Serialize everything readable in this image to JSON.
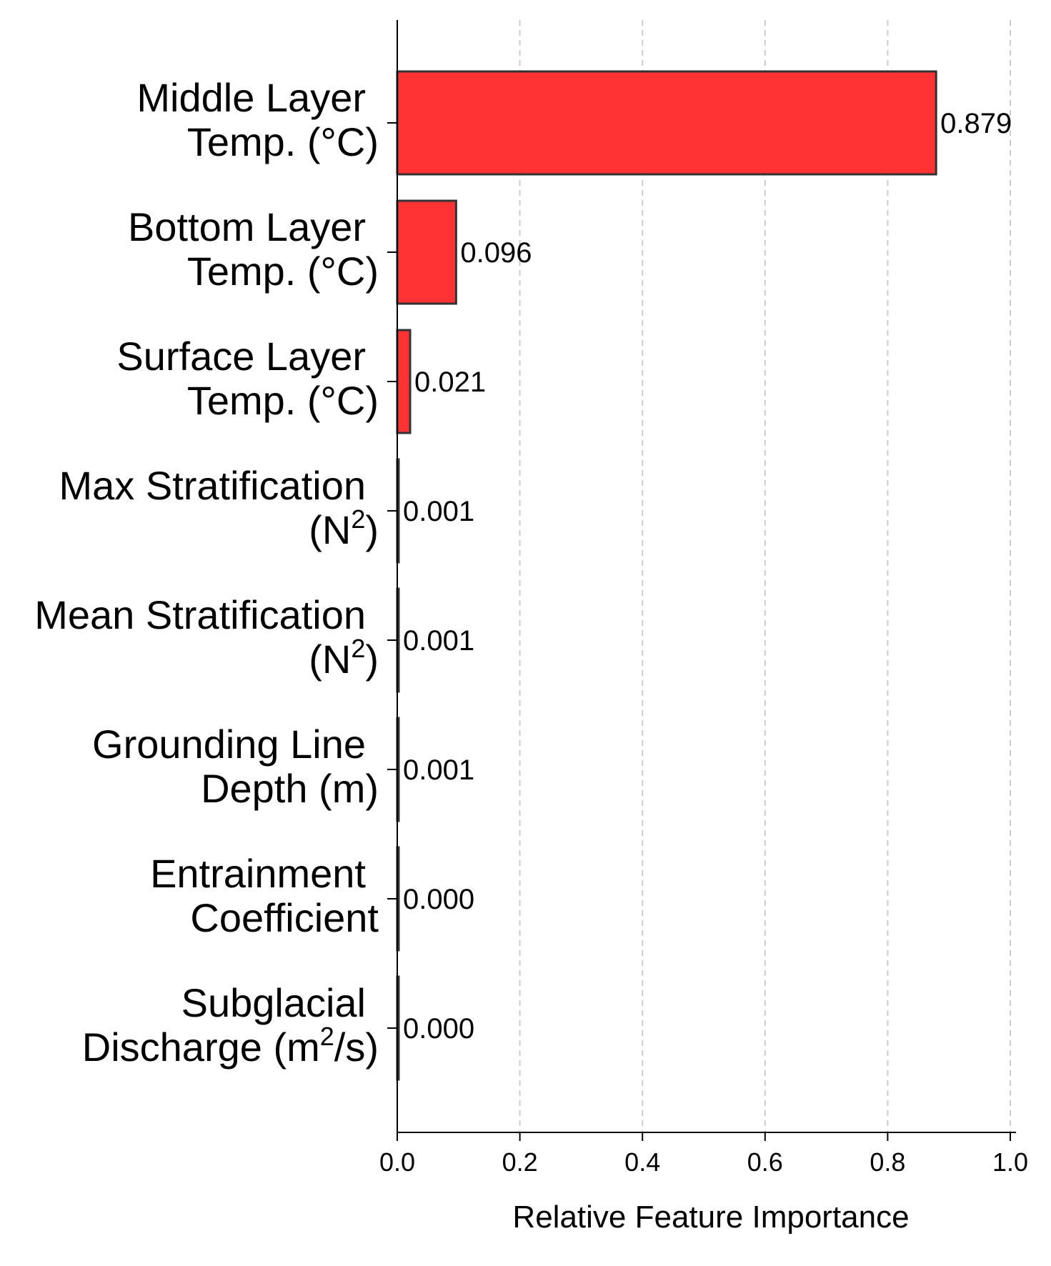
{
  "chart_data": {
    "type": "bar",
    "orientation": "horizontal",
    "categories": [
      {
        "id": "middle-layer-temp",
        "lines": [
          [
            {
              "t": "Middle Layer"
            }
          ],
          [
            {
              "t": "Temp. (°C)"
            }
          ]
        ]
      },
      {
        "id": "bottom-layer-temp",
        "lines": [
          [
            {
              "t": "Bottom Layer"
            }
          ],
          [
            {
              "t": "Temp. (°C)"
            }
          ]
        ]
      },
      {
        "id": "surface-layer-temp",
        "lines": [
          [
            {
              "t": "Surface Layer"
            }
          ],
          [
            {
              "t": "Temp. (°C)"
            }
          ]
        ]
      },
      {
        "id": "max-stratification",
        "lines": [
          [
            {
              "t": "Max Stratification"
            }
          ],
          [
            {
              "t": "(N"
            },
            {
              "t": "2",
              "sup": true
            },
            {
              "t": ")"
            }
          ]
        ]
      },
      {
        "id": "mean-stratification",
        "lines": [
          [
            {
              "t": "Mean Stratification"
            }
          ],
          [
            {
              "t": "(N"
            },
            {
              "t": "2",
              "sup": true
            },
            {
              "t": ")"
            }
          ]
        ]
      },
      {
        "id": "grounding-line-depth",
        "lines": [
          [
            {
              "t": "Grounding Line"
            }
          ],
          [
            {
              "t": "Depth (m)"
            }
          ]
        ]
      },
      {
        "id": "entrainment-coefficient",
        "lines": [
          [
            {
              "t": "Entrainment"
            }
          ],
          [
            {
              "t": "Coefficient"
            }
          ]
        ]
      },
      {
        "id": "subglacial-discharge",
        "lines": [
          [
            {
              "t": "Subglacial"
            }
          ],
          [
            {
              "t": "Discharge (m"
            },
            {
              "t": "2",
              "sup": true
            },
            {
              "t": "/s)"
            }
          ]
        ]
      }
    ],
    "values": [
      0.879,
      0.096,
      0.021,
      0.001,
      0.001,
      0.001,
      0.0,
      0.0
    ],
    "value_labels": [
      "0.879",
      "0.096",
      "0.021",
      "0.001",
      "0.001",
      "0.001",
      "0.000",
      "0.000"
    ],
    "xlabel": "Relative Feature Importance",
    "ylabel": "",
    "title": "",
    "xlim": [
      0,
      1.0
    ],
    "xticks": [
      0.0,
      0.2,
      0.4,
      0.6,
      0.8,
      1.0
    ],
    "xtick_labels": [
      "0.0",
      "0.2",
      "0.4",
      "0.6",
      "0.8",
      "1.0"
    ],
    "grid": "x-dashed",
    "bar_color": "#ff3333",
    "bar_edge_color": "#333333",
    "grid_color": "#cccccc",
    "axis_color": "#000000"
  }
}
